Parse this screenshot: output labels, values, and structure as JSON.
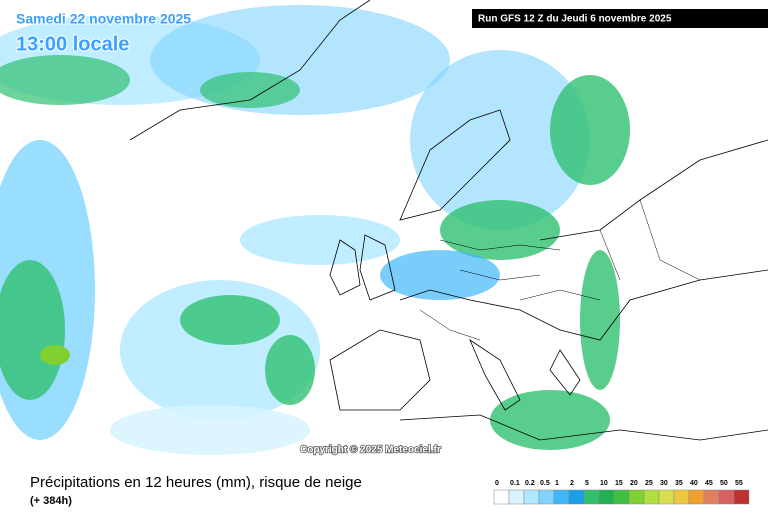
{
  "map": {
    "date": "Samedi 22 novembre 2025",
    "time": "13:00 locale",
    "run": "Run GFS 12 Z du Jeudi 6 novembre 2025",
    "copyright": "Copyright © 2025 Meteociel.fr"
  },
  "footer": {
    "title": "Précipitations en 12 heures (mm), risque de neige",
    "lead": "(+ 384h)"
  },
  "legend": {
    "values": [
      0,
      0.1,
      0.2,
      0.5,
      1,
      2,
      5,
      10,
      15,
      20,
      25,
      30,
      35,
      40,
      45,
      50,
      55
    ],
    "colors": [
      "#ffffff",
      "#d8f4ff",
      "#b0e8ff",
      "#80d4ff",
      "#40b8f8",
      "#1aa0e8",
      "#30c070",
      "#20b050",
      "#40c040",
      "#80d030",
      "#b0e040",
      "#d8e050",
      "#f0c840",
      "#f0a030",
      "#e08060",
      "#d86060",
      "#c03030"
    ]
  }
}
